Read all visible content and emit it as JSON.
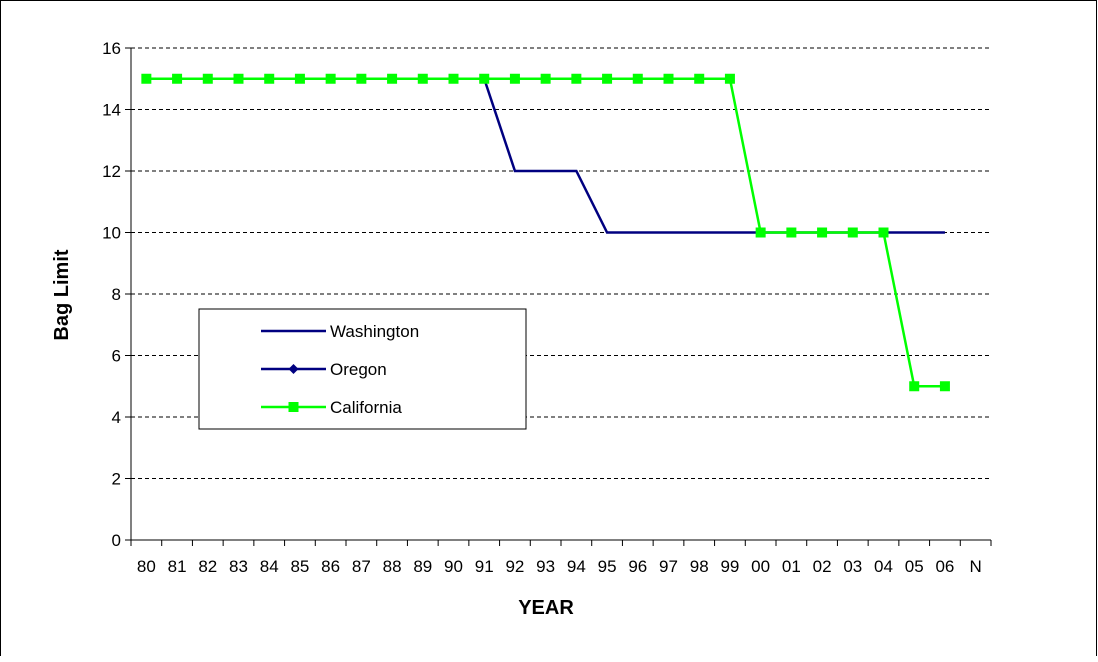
{
  "chart_data": {
    "type": "line",
    "title": "",
    "xlabel": "YEAR",
    "ylabel": "Bag Limit",
    "categories": [
      "80",
      "81",
      "82",
      "83",
      "84",
      "85",
      "86",
      "87",
      "88",
      "89",
      "90",
      "91",
      "92",
      "93",
      "94",
      "95",
      "96",
      "97",
      "98",
      "99",
      "00",
      "01",
      "02",
      "03",
      "04",
      "05",
      "06",
      "N"
    ],
    "ylim": [
      0,
      16
    ],
    "yticks": [
      0,
      2,
      4,
      6,
      8,
      10,
      12,
      14,
      16
    ],
    "grid": "horizontal-dashed",
    "legend_position": "center-left",
    "series": [
      {
        "name": "Washington",
        "color": "#000080",
        "marker": "none",
        "values": [
          15,
          15,
          15,
          15,
          15,
          15,
          15,
          15,
          15,
          15,
          15,
          15,
          12,
          12,
          12,
          10,
          10,
          10,
          10,
          10,
          10,
          10,
          10,
          10,
          10,
          10,
          10,
          null
        ]
      },
      {
        "name": "Oregon",
        "color": "#000080",
        "marker": "diamond",
        "values": [
          null,
          null,
          null,
          null,
          null,
          null,
          null,
          null,
          null,
          null,
          null,
          null,
          null,
          null,
          null,
          null,
          null,
          null,
          null,
          null,
          null,
          null,
          null,
          null,
          null,
          null,
          null,
          null
        ]
      },
      {
        "name": "California",
        "color": "#00ff00",
        "marker": "square",
        "values": [
          15,
          15,
          15,
          15,
          15,
          15,
          15,
          15,
          15,
          15,
          15,
          15,
          15,
          15,
          15,
          15,
          15,
          15,
          15,
          15,
          10,
          10,
          10,
          10,
          10,
          5,
          5,
          null
        ]
      }
    ]
  }
}
